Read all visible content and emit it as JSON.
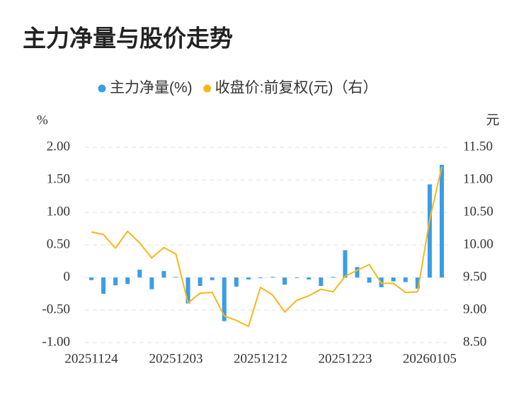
{
  "chart_data": {
    "type": "bar-line",
    "title": "主力净量与股价走势",
    "y_label": "%",
    "y2_label": "元",
    "categories": [
      "20251124",
      null,
      null,
      null,
      null,
      null,
      null,
      "20251203",
      null,
      null,
      null,
      null,
      null,
      null,
      "20251212",
      null,
      null,
      null,
      null,
      null,
      null,
      "20251223",
      null,
      null,
      null,
      null,
      null,
      null,
      "20260105",
      null
    ],
    "series": [
      {
        "name": "主力净量(%)",
        "color": "#3a9de8",
        "type": "bar",
        "values": [
          -0.04,
          -0.25,
          -0.12,
          -0.1,
          0.12,
          -0.18,
          0.1,
          0.01,
          -0.4,
          -0.13,
          -0.04,
          -0.67,
          -0.14,
          -0.03,
          -0.01,
          0.01,
          -0.11,
          0,
          -0.03,
          -0.13,
          0.01,
          0.42,
          0.16,
          -0.08,
          -0.15,
          -0.06,
          -0.07,
          -0.17,
          1.43,
          1.73
        ]
      },
      {
        "name": "收盘价:前复权(元)（右）",
        "color": "#f5b818",
        "type": "line",
        "axis": "y2",
        "values": [
          10.2,
          10.16,
          9.95,
          10.21,
          10.03,
          9.8,
          9.96,
          9.86,
          9.11,
          9.26,
          9.27,
          8.91,
          8.84,
          8.75,
          9.35,
          9.23,
          8.97,
          9.15,
          9.22,
          9.32,
          9.28,
          9.52,
          9.61,
          9.7,
          9.41,
          9.41,
          9.27,
          9.28,
          10.39,
          11.2
        ]
      }
    ],
    "ylim": [
      -1,
      2
    ],
    "yticks": [
      {
        "value": -1,
        "label": "-1.00"
      },
      {
        "value": -0.5,
        "label": "-0.50"
      },
      0,
      {
        "value": 0.5,
        "label": "0.50"
      },
      {
        "value": 1,
        "label": "1.00"
      },
      {
        "value": 1.5,
        "label": "1.50"
      },
      {
        "value": 2,
        "label": "2.00"
      }
    ],
    "y2lim": [
      8.5,
      11.5
    ],
    "y2ticks": [
      {
        "value": 8.5,
        "label": "8.50"
      },
      {
        "value": 9,
        "label": "9.00"
      },
      {
        "value": 9.5,
        "label": "9.50"
      },
      {
        "value": 10,
        "label": "10.00"
      },
      {
        "value": 10.5,
        "label": "10.50"
      },
      {
        "value": 11,
        "label": "11.00"
      },
      {
        "value": 11.5,
        "label": "11.50"
      }
    ],
    "grid": true
  }
}
